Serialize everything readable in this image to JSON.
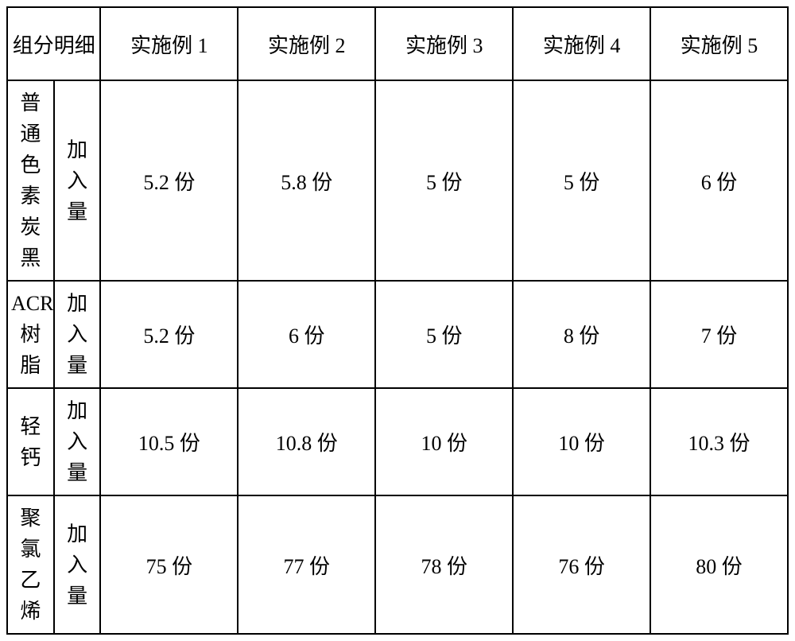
{
  "table": {
    "type": "table",
    "background_color": "#ffffff",
    "border_color": "#000000",
    "border_width": 2,
    "font_size": 26,
    "font_family": "SimSun",
    "text_color": "#000000",
    "header": {
      "component_detail": "组分明细",
      "col1": "实施例 1",
      "col2": "实施例 2",
      "col3": "实施例 3",
      "col4": "实施例 4",
      "col5": "实施例 5"
    },
    "rows": [
      {
        "component_line1": "普通",
        "component_line2": "色素",
        "component_line3": "炭黑",
        "attr_line1": "加入",
        "attr_line2": "量",
        "v1": "5.2 份",
        "v2": "5.8 份",
        "v3": "5 份",
        "v4": "5 份",
        "v5": "6 份"
      },
      {
        "component_line1": "ACR",
        "component_line2": "树脂",
        "component_line3": "",
        "attr_line1": "加入",
        "attr_line2": "量",
        "v1": "5.2 份",
        "v2": "6 份",
        "v3": "5 份",
        "v4": "8 份",
        "v5": "7 份"
      },
      {
        "component_line1": "轻钙",
        "component_line2": "",
        "component_line3": "",
        "attr_line1": "加入",
        "attr_line2": "量",
        "v1": "10.5 份",
        "v2": "10.8 份",
        "v3": "10 份",
        "v4": "10 份",
        "v5": "10.3 份"
      },
      {
        "component_line1": "聚氯",
        "component_line2": "乙烯",
        "component_line3": "",
        "attr_line1": "加入",
        "attr_line2": "量",
        "v1": "75 份",
        "v2": "77 份",
        "v3": "78 份",
        "v4": "76 份",
        "v5": "80 份"
      }
    ]
  }
}
